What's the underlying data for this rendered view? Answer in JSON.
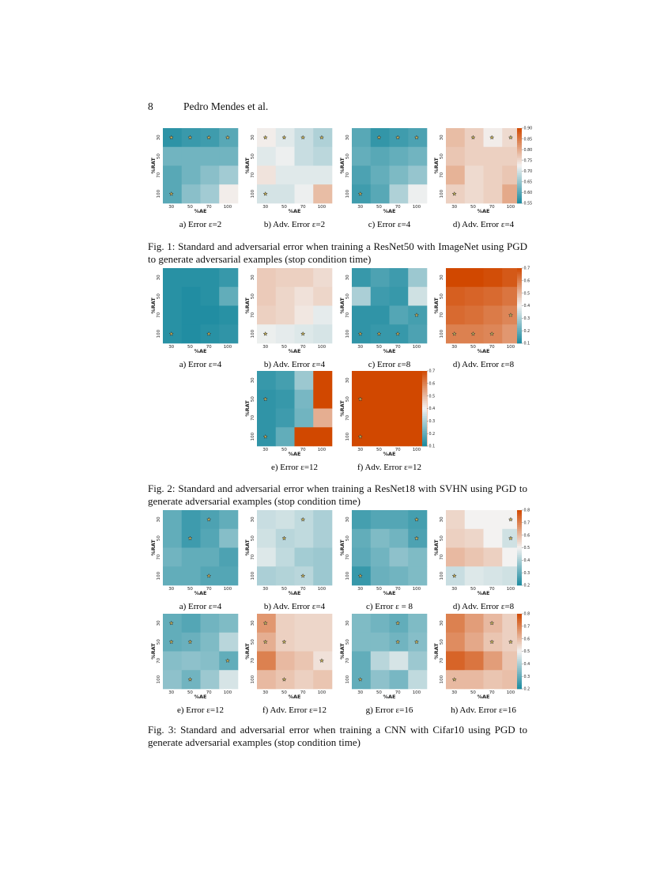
{
  "header": {
    "page_number": "8",
    "authors": "Pedro Mendes et al."
  },
  "axes": {
    "xlabel": "%AE",
    "ylabel": "%RAT",
    "ticks": [
      "30",
      "50",
      "70",
      "100"
    ]
  },
  "colors": {
    "teal": "#1a8a9f",
    "white": "#f3f2f1",
    "orange": "#d14800",
    "star_fill": "#c9b458",
    "star_stroke": "#333333"
  },
  "figures": [
    {
      "caption": "Fig. 1: Standard and adversarial error when training a ResNet50 with ImageNet using PGD to generate adversarial examples (stop condition time)",
      "colorbar": {
        "min": 0.55,
        "max": 0.9,
        "ticks": [
          "0.55",
          "0.60",
          "0.65",
          "0.70",
          "0.75",
          "0.80",
          "0.85",
          "0.90"
        ]
      },
      "panels": [
        {
          "label": "a) Error ε=2",
          "values": [
            [
              0.565,
              0.575,
              0.58,
              0.6
            ],
            [
              0.62,
              0.62,
              0.62,
              0.62
            ],
            [
              0.6,
              0.62,
              0.64,
              0.66
            ],
            [
              0.6,
              0.64,
              0.66,
              0.73
            ]
          ],
          "stars": [
            [
              0,
              0
            ],
            [
              0,
              1
            ],
            [
              0,
              2
            ],
            [
              0,
              3
            ],
            [
              3,
              0
            ]
          ]
        },
        {
          "label": "b) Adv. Error ε=2",
          "values": [
            [
              0.73,
              0.71,
              0.69,
              0.67
            ],
            [
              0.71,
              0.72,
              0.69,
              0.68
            ],
            [
              0.74,
              0.71,
              0.71,
              0.71
            ],
            [
              0.7,
              0.7,
              0.72,
              0.78
            ]
          ],
          "stars": [
            [
              0,
              0
            ],
            [
              0,
              1
            ],
            [
              0,
              2
            ],
            [
              0,
              3
            ],
            [
              3,
              0
            ]
          ]
        },
        {
          "label": "c) Error ε=4",
          "values": [
            [
              0.6,
              0.57,
              0.58,
              0.59
            ],
            [
              0.61,
              0.6,
              0.61,
              0.62
            ],
            [
              0.59,
              0.61,
              0.63,
              0.65
            ],
            [
              0.58,
              0.6,
              0.67,
              0.72
            ]
          ],
          "stars": [
            [
              0,
              1
            ],
            [
              0,
              2
            ],
            [
              0,
              3
            ],
            [
              3,
              0
            ]
          ]
        },
        {
          "label": "d) Adv. Error ε=4",
          "values": [
            [
              0.78,
              0.76,
              0.73,
              0.75
            ],
            [
              0.77,
              0.76,
              0.76,
              0.76
            ],
            [
              0.79,
              0.75,
              0.76,
              0.77
            ],
            [
              0.76,
              0.75,
              0.76,
              0.8
            ]
          ],
          "stars": [
            [
              0,
              1
            ],
            [
              0,
              2
            ],
            [
              0,
              3
            ],
            [
              3,
              0
            ]
          ]
        }
      ]
    },
    {
      "caption": "Fig. 2: Standard and adversarial error when training a ResNet18 with SVHN using PGD to generate adversarial examples (stop condition time)",
      "colorbar": {
        "min": 0.1,
        "max": 0.7,
        "ticks": [
          "0.1",
          "0.2",
          "0.3",
          "0.4",
          "0.5",
          "0.6",
          "0.7"
        ]
      },
      "panels": [
        {
          "label": "a) Error ε=4",
          "values": [
            [
              0.12,
              0.12,
              0.12,
              0.14
            ],
            [
              0.12,
              0.11,
              0.12,
              0.2
            ],
            [
              0.12,
              0.11,
              0.11,
              0.12
            ],
            [
              0.12,
              0.11,
              0.12,
              0.13
            ]
          ],
          "stars": [
            [
              3,
              0
            ],
            [
              3,
              2
            ]
          ]
        },
        {
          "label": "b) Adv. Error ε=4",
          "values": [
            [
              0.47,
              0.46,
              0.46,
              0.44
            ],
            [
              0.47,
              0.45,
              0.43,
              0.45
            ],
            [
              0.46,
              0.45,
              0.42,
              0.38
            ],
            [
              0.39,
              0.38,
              0.37,
              0.36
            ]
          ],
          "stars": [
            [
              3,
              0
            ],
            [
              3,
              2
            ]
          ]
        },
        {
          "label": "c) Error ε=8",
          "values": [
            [
              0.14,
              0.17,
              0.15,
              0.28
            ],
            [
              0.3,
              0.15,
              0.14,
              0.35
            ],
            [
              0.13,
              0.13,
              0.18,
              0.16
            ],
            [
              0.13,
              0.14,
              0.14,
              0.17
            ]
          ],
          "stars": [
            [
              2,
              3
            ],
            [
              3,
              0
            ],
            [
              3,
              1
            ],
            [
              3,
              2
            ]
          ]
        },
        {
          "label": "d) Adv. Error ε=8",
          "values": [
            [
              0.7,
              0.7,
              0.69,
              0.67
            ],
            [
              0.66,
              0.65,
              0.64,
              0.62
            ],
            [
              0.64,
              0.63,
              0.61,
              0.59
            ],
            [
              0.6,
              0.6,
              0.59,
              0.56
            ]
          ],
          "stars": [
            [
              2,
              3
            ],
            [
              3,
              0
            ],
            [
              3,
              1
            ],
            [
              3,
              2
            ]
          ]
        },
        {
          "label": "e) Error ε=12",
          "values": [
            [
              0.14,
              0.16,
              0.28,
              0.7
            ],
            [
              0.13,
              0.14,
              0.23,
              0.7
            ],
            [
              0.13,
              0.15,
              0.22,
              0.52
            ],
            [
              0.13,
              0.2,
              0.7,
              0.7
            ]
          ],
          "stars": [
            [
              1,
              0
            ],
            [
              3,
              0
            ]
          ]
        },
        {
          "label": "f) Adv. Error ε=12",
          "values": [
            [
              0.7,
              0.7,
              0.7,
              0.7
            ],
            [
              0.7,
              0.7,
              0.7,
              0.7
            ],
            [
              0.7,
              0.7,
              0.7,
              0.7
            ],
            [
              0.7,
              0.7,
              0.7,
              0.7
            ]
          ],
          "stars": [
            [
              1,
              0
            ],
            [
              3,
              0
            ]
          ]
        }
      ]
    },
    {
      "caption": "Fig. 3: Standard and adversarial error when training a CNN with Cifar10 using PGD to generate adversarial examples (stop condition time)",
      "colorbar": {
        "min": 0.2,
        "max": 0.8,
        "ticks": [
          "0.2",
          "0.3",
          "0.4",
          "0.5",
          "0.6",
          "0.7",
          "0.8"
        ]
      },
      "panels": [
        {
          "label": "a) Error ε=4",
          "values": [
            [
              0.3,
              0.25,
              0.27,
              0.3
            ],
            [
              0.3,
              0.25,
              0.28,
              0.35
            ],
            [
              0.32,
              0.3,
              0.3,
              0.27
            ],
            [
              0.3,
              0.3,
              0.28,
              0.28
            ]
          ],
          "stars": [
            [
              0,
              2
            ],
            [
              1,
              1
            ],
            [
              3,
              2
            ]
          ]
        },
        {
          "label": "b) Adv. Error ε=4",
          "values": [
            [
              0.44,
              0.45,
              0.43,
              0.4
            ],
            [
              0.45,
              0.42,
              0.43,
              0.4
            ],
            [
              0.47,
              0.43,
              0.39,
              0.38
            ],
            [
              0.4,
              0.41,
              0.42,
              0.38
            ]
          ],
          "stars": [
            [
              0,
              2
            ],
            [
              1,
              1
            ],
            [
              3,
              2
            ]
          ]
        },
        {
          "label": "c) Error ε = 8",
          "values": [
            [
              0.26,
              0.28,
              0.28,
              0.26
            ],
            [
              0.3,
              0.34,
              0.32,
              0.27
            ],
            [
              0.29,
              0.32,
              0.36,
              0.34
            ],
            [
              0.24,
              0.31,
              0.32,
              0.34
            ]
          ],
          "stars": [
            [
              0,
              3
            ],
            [
              1,
              3
            ],
            [
              3,
              0
            ]
          ]
        },
        {
          "label": "d) Adv. Error ε=8",
          "values": [
            [
              0.55,
              0.5,
              0.5,
              0.5
            ],
            [
              0.56,
              0.55,
              0.5,
              0.45
            ],
            [
              0.6,
              0.58,
              0.56,
              0.5
            ],
            [
              0.44,
              0.47,
              0.46,
              0.45
            ]
          ],
          "stars": [
            [
              0,
              3
            ],
            [
              1,
              3
            ],
            [
              3,
              0
            ]
          ]
        },
        {
          "label": "e) Error ε=12",
          "values": [
            [
              0.3,
              0.28,
              0.32,
              0.34
            ],
            [
              0.3,
              0.31,
              0.34,
              0.42
            ],
            [
              0.35,
              0.36,
              0.35,
              0.3
            ],
            [
              0.36,
              0.32,
              0.38,
              0.46
            ]
          ],
          "stars": [
            [
              0,
              0
            ],
            [
              1,
              0
            ],
            [
              1,
              1
            ],
            [
              2,
              3
            ],
            [
              3,
              1
            ]
          ]
        },
        {
          "label": "f) Adv. Error ε=12",
          "values": [
            [
              0.66,
              0.56,
              0.55,
              0.55
            ],
            [
              0.62,
              0.56,
              0.55,
              0.55
            ],
            [
              0.7,
              0.6,
              0.58,
              0.53
            ],
            [
              0.6,
              0.58,
              0.56,
              0.58
            ]
          ],
          "stars": [
            [
              0,
              0
            ],
            [
              1,
              0
            ],
            [
              1,
              1
            ],
            [
              2,
              3
            ],
            [
              3,
              1
            ]
          ]
        },
        {
          "label": "g) Error ε=16",
          "values": [
            [
              0.34,
              0.32,
              0.3,
              0.34
            ],
            [
              0.34,
              0.34,
              0.32,
              0.35
            ],
            [
              0.3,
              0.42,
              0.46,
              0.38
            ],
            [
              0.3,
              0.36,
              0.33,
              0.43
            ]
          ],
          "stars": [
            [
              0,
              2
            ],
            [
              1,
              2
            ],
            [
              1,
              3
            ],
            [
              3,
              0
            ]
          ]
        },
        {
          "label": "h) Adv. Error ε=16",
          "values": [
            [
              0.7,
              0.65,
              0.6,
              0.56
            ],
            [
              0.68,
              0.63,
              0.58,
              0.56
            ],
            [
              0.75,
              0.72,
              0.65,
              0.58
            ],
            [
              0.6,
              0.6,
              0.58,
              0.59
            ]
          ],
          "stars": [
            [
              0,
              2
            ],
            [
              1,
              2
            ],
            [
              1,
              3
            ],
            [
              3,
              0
            ]
          ]
        }
      ]
    }
  ]
}
